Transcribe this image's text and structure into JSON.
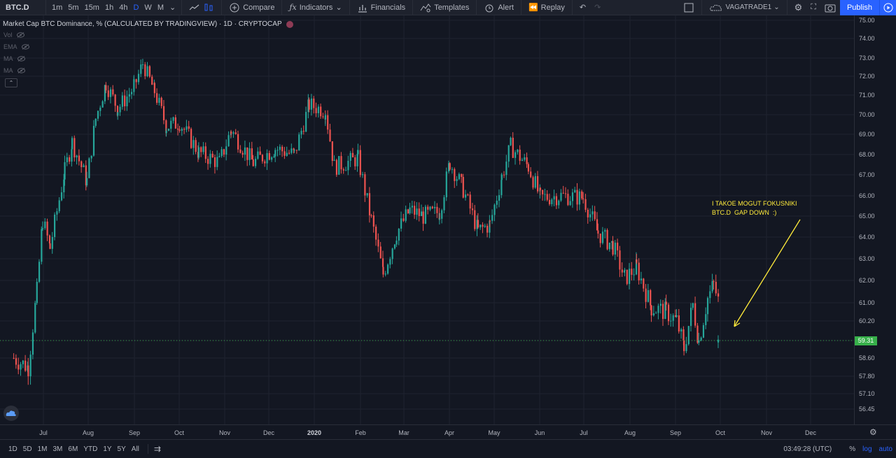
{
  "toolbar": {
    "symbol": "BTC.D",
    "timeframes": [
      "1m",
      "5m",
      "15m",
      "1h",
      "4h",
      "D",
      "W",
      "M"
    ],
    "active_timeframe": "D",
    "compare": "Compare",
    "indicators": "Indicators",
    "financials": "Financials",
    "templates": "Templates",
    "alert": "Alert",
    "replay": "Replay",
    "layout_name": "VAGATRADE1",
    "publish": "Publish"
  },
  "legend": {
    "title": "Market Cap BTC Dominance, % (CALCULATED BY TRADINGVIEW) · 1D · CRYPTOCAP",
    "indicators": [
      "Vol",
      "EMA",
      "MA",
      "MA"
    ]
  },
  "price_axis": {
    "labels": [
      "75.00",
      "74.00",
      "73.00",
      "72.00",
      "71.00",
      "70.00",
      "69.00",
      "68.00",
      "67.00",
      "66.00",
      "65.00",
      "64.00",
      "63.00",
      "62.00",
      "61.00",
      "60.20",
      "59.31",
      "58.60",
      "57.80",
      "57.10",
      "56.45"
    ],
    "last_price": "59.31"
  },
  "time_axis": {
    "labels": [
      "Jul",
      "Aug",
      "Sep",
      "Oct",
      "Nov",
      "Dec",
      "2020",
      "Feb",
      "Mar",
      "Apr",
      "May",
      "Jun",
      "Jul",
      "Aug",
      "Sep",
      "Oct",
      "Nov",
      "Dec"
    ]
  },
  "annotation": {
    "text": "I TAKOE MOGUT FOKUSNIKI\nBTC.D  GAP DOWN  :)"
  },
  "bottom": {
    "ranges": [
      "1D",
      "5D",
      "1M",
      "3M",
      "6M",
      "YTD",
      "1Y",
      "5Y",
      "All"
    ],
    "clock": "03:49:28 (UTC)",
    "percent": "%",
    "log": "log",
    "auto": "auto"
  },
  "colors": {
    "up": "#26a69a",
    "down": "#ef5350",
    "background": "#131722",
    "accent": "#2962ff",
    "annotation": "#ffeb3b"
  },
  "chart_data": {
    "type": "candlestick",
    "title": "Market Cap BTC Dominance, % (CALCULATED BY TRADINGVIEW) · 1D · CRYPTOCAP",
    "ylim": [
      56.0,
      75.3
    ],
    "x_range": [
      "2019-06",
      "2020-12"
    ],
    "last_value": 59.31,
    "path": [
      {
        "month": "2019-06-10",
        "close": 58.6
      },
      {
        "month": "2019-06-20",
        "close": 58.2
      },
      {
        "month": "2019-06-26",
        "close": 61.5
      },
      {
        "month": "2019-06-30",
        "close": 64.8
      },
      {
        "month": "2019-07-05",
        "close": 63.5
      },
      {
        "month": "2019-07-15",
        "close": 67.2
      },
      {
        "month": "2019-07-20",
        "close": 68.6
      },
      {
        "month": "2019-07-30",
        "close": 66.7
      },
      {
        "month": "2019-08-05",
        "close": 69.8
      },
      {
        "month": "2019-08-12",
        "close": 71.6
      },
      {
        "month": "2019-08-20",
        "close": 70.3
      },
      {
        "month": "2019-08-31",
        "close": 71.4
      },
      {
        "month": "2019-09-06",
        "close": 72.7
      },
      {
        "month": "2019-09-14",
        "close": 71.2
      },
      {
        "month": "2019-09-22",
        "close": 69.4
      },
      {
        "month": "2019-10-01",
        "close": 69.6
      },
      {
        "month": "2019-10-14",
        "close": 68.1
      },
      {
        "month": "2019-10-28",
        "close": 67.6
      },
      {
        "month": "2019-11-05",
        "close": 69.2
      },
      {
        "month": "2019-11-20",
        "close": 67.6
      },
      {
        "month": "2019-12-05",
        "close": 68.3
      },
      {
        "month": "2019-12-18",
        "close": 68.0
      },
      {
        "month": "2019-12-28",
        "close": 70.5
      },
      {
        "month": "2020-01-08",
        "close": 70.2
      },
      {
        "month": "2020-01-14",
        "close": 67.4
      },
      {
        "month": "2020-01-30",
        "close": 67.8
      },
      {
        "month": "2020-02-08",
        "close": 64.8
      },
      {
        "month": "2020-02-16",
        "close": 62.3
      },
      {
        "month": "2020-02-25",
        "close": 64.2
      },
      {
        "month": "2020-03-05",
        "close": 65.3
      },
      {
        "month": "2020-03-14",
        "close": 65.0
      },
      {
        "month": "2020-03-25",
        "close": 65.2
      },
      {
        "month": "2020-04-01",
        "close": 67.6
      },
      {
        "month": "2020-04-10",
        "close": 66.3
      },
      {
        "month": "2020-04-20",
        "close": 64.3
      },
      {
        "month": "2020-04-28",
        "close": 64.6
      },
      {
        "month": "2020-05-06",
        "close": 66.9
      },
      {
        "month": "2020-05-12",
        "close": 68.4
      },
      {
        "month": "2020-05-24",
        "close": 67.4
      },
      {
        "month": "2020-06-01",
        "close": 65.9
      },
      {
        "month": "2020-06-15",
        "close": 66.0
      },
      {
        "month": "2020-06-30",
        "close": 65.9
      },
      {
        "month": "2020-07-10",
        "close": 64.2
      },
      {
        "month": "2020-07-20",
        "close": 63.6
      },
      {
        "month": "2020-07-28",
        "close": 62.1
      },
      {
        "month": "2020-08-05",
        "close": 62.6
      },
      {
        "month": "2020-08-15",
        "close": 60.8
      },
      {
        "month": "2020-08-25",
        "close": 60.6
      },
      {
        "month": "2020-09-01",
        "close": 60.2
      },
      {
        "month": "2020-09-06",
        "close": 59.0
      },
      {
        "month": "2020-09-12",
        "close": 60.9
      },
      {
        "month": "2020-09-16",
        "close": 59.3
      },
      {
        "month": "2020-09-22",
        "close": 61.2
      },
      {
        "month": "2020-09-26",
        "close": 61.8
      },
      {
        "month": "2020-09-30",
        "close": 60.9
      },
      {
        "month": "2020-10-01",
        "close": 59.3
      }
    ]
  }
}
